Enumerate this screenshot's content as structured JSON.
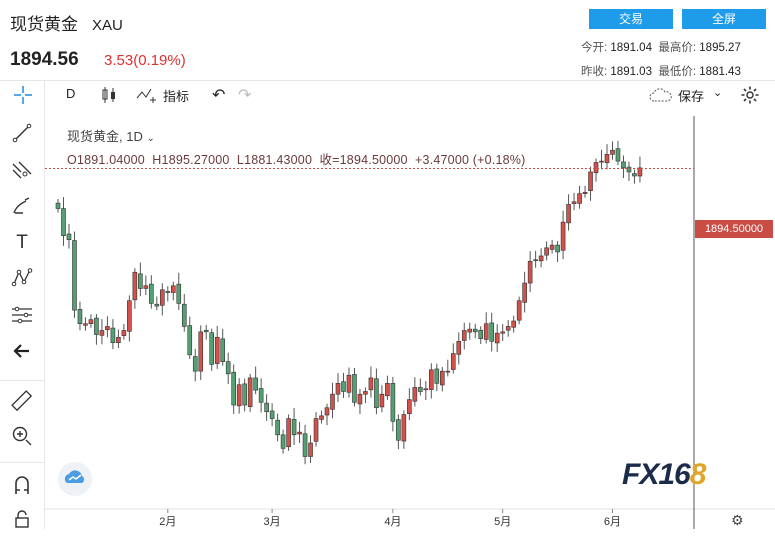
{
  "header": {
    "title": "现货黄金",
    "symbol": "XAU",
    "price": "1894.56",
    "change": "3.53(0.19%)",
    "trade_button": "交易",
    "fullscreen_button": "全屏",
    "stats": {
      "open_label": "今开:",
      "open": "1891.04",
      "high_label": "最高价:",
      "high": "1895.27",
      "prev_close_label": "昨收:",
      "prev_close": "1891.03",
      "low_label": "最低价:",
      "low": "1881.43"
    }
  },
  "toolbar": {
    "interval": "D",
    "indicators_label": "指标",
    "save_label": "保存"
  },
  "legend": {
    "name": "现货黄金, 1D",
    "ohlc": "O1891.04000  H1895.27000  L1881.43000  收=1894.50000  +3.47000 (+0.18%)"
  },
  "price_tag": "1894.50000",
  "logo": {
    "main": "FX16",
    "accent": "8"
  },
  "colors": {
    "up": "#d2514a",
    "down": "#55a072",
    "accent": "#1e9be9"
  },
  "chart_data": {
    "type": "candlestick",
    "ylim": [
      1675,
      1920
    ],
    "last_price": 1894.5,
    "x_ticks": [
      {
        "label": "2月",
        "index": 20
      },
      {
        "label": "3月",
        "index": 39
      },
      {
        "label": "4月",
        "index": 61
      },
      {
        "label": "5月",
        "index": 81
      },
      {
        "label": "6月",
        "index": 101
      }
    ],
    "closes": [
      1865,
      1845,
      1842,
      1790,
      1780,
      1780,
      1783,
      1772,
      1775,
      1778,
      1766,
      1770,
      1775,
      1797,
      1818,
      1806,
      1808,
      1795,
      1793,
      1805,
      1803,
      1808,
      1795,
      1778,
      1757,
      1745,
      1774,
      1774,
      1750,
      1770,
      1752,
      1743,
      1720,
      1735,
      1720,
      1740,
      1731,
      1722,
      1715,
      1710,
      1698,
      1688,
      1710,
      1698,
      1700,
      1682,
      1692,
      1710,
      1712,
      1718,
      1728,
      1736,
      1730,
      1742,
      1722,
      1728,
      1730,
      1740,
      1718,
      1728,
      1736,
      1708,
      1694,
      1713,
      1724,
      1733,
      1730,
      1732,
      1746,
      1736,
      1745,
      1745,
      1758,
      1767,
      1775,
      1776,
      1774,
      1769,
      1780,
      1767,
      1773,
      1774,
      1778,
      1782,
      1797,
      1810,
      1826,
      1827,
      1830,
      1836,
      1838,
      1833,
      1855,
      1868,
      1870,
      1876,
      1877,
      1892,
      1899,
      1900,
      1905,
      1908,
      1900,
      1895,
      1892,
      1889,
      1895
    ]
  }
}
